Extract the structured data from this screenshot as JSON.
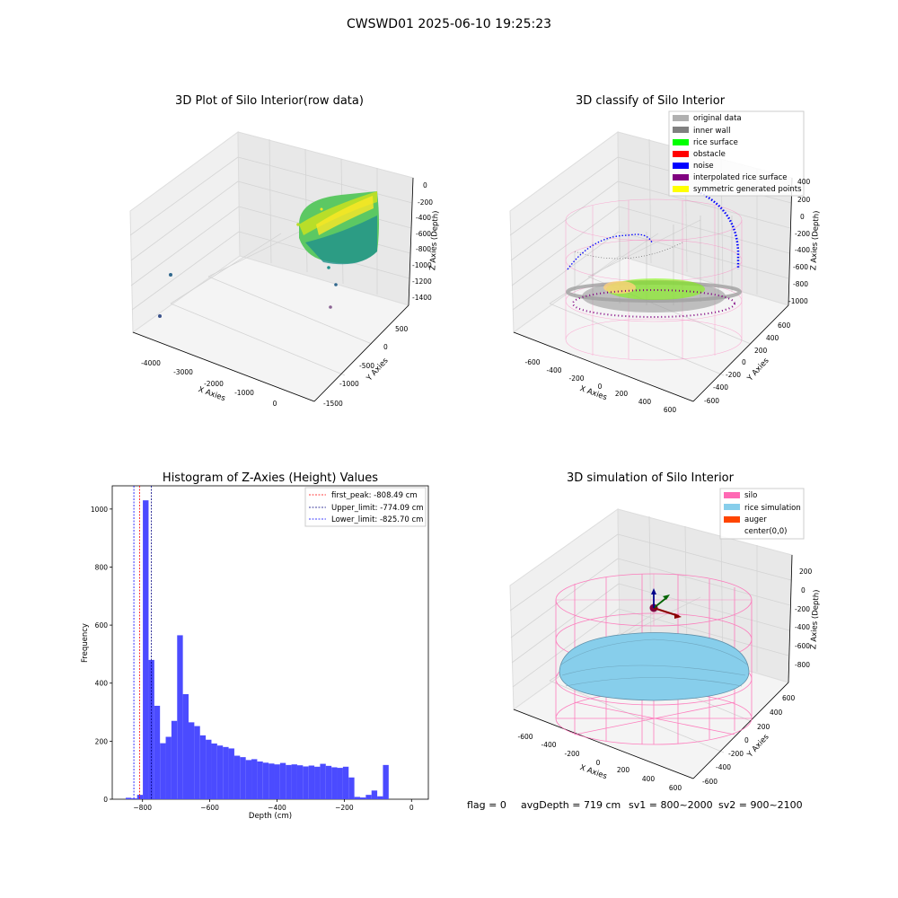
{
  "suptitle": "CWSWD01 2025-06-10 19:25:23",
  "footer": {
    "flag": "flag = 0",
    "avgDepth": "avgDepth = 719 cm",
    "sv1": "sv1 = 800~2000",
    "sv2": "sv2 = 900~2100"
  },
  "colors": {
    "hist_bar": "#4b4bff",
    "first_peak": "#ff0000",
    "upper_limit": "#000080",
    "lower_limit": "#0000ff",
    "silo": "#ff69b4",
    "rice_sim": "#87ceeb",
    "auger": "#ff4500",
    "original": "#b0b0b0",
    "inner_wall": "#808080",
    "rice_surface": "#00ff00",
    "obstacle": "#ff0000",
    "noise": "#0000ff",
    "interp": "#800080",
    "sym": "#ffff00"
  },
  "panel1": {
    "title": "3D Plot of Silo Interior(row data)",
    "xlabel": "X Axies",
    "ylabel": "Y Axies",
    "zlabel": "Z Axies (Depth)",
    "xticks": [
      "-4000",
      "-3000",
      "-2000",
      "-1000",
      "0"
    ],
    "yticks": [
      "500",
      "0",
      "-500",
      "-1000",
      "-1500"
    ],
    "zticks": [
      "0",
      "-200",
      "-400",
      "-600",
      "-800",
      "-1000",
      "-1200",
      "-1400"
    ]
  },
  "panel2": {
    "title": "3D classify of Silo Interior",
    "xlabel": "X Axies",
    "ylabel": "Y Axies",
    "zlabel": "Z Axies (Depth)",
    "xticks": [
      "-600",
      "-400",
      "-200",
      "0",
      "200",
      "400",
      "600"
    ],
    "yticks": [
      "600",
      "400",
      "200",
      "0",
      "-200",
      "-400",
      "-600"
    ],
    "zticks": [
      "400",
      "200",
      "0",
      "-200",
      "-400",
      "-600",
      "-800",
      "-1000"
    ],
    "legend": [
      "original data",
      "inner wall",
      "rice surface",
      "obstacle",
      "noise",
      "interpolated rice surface",
      "symmetric generated points"
    ]
  },
  "panel4": {
    "title": "3D simulation of Silo Interior",
    "xlabel": "X Axies",
    "ylabel": "Y Axies",
    "zlabel": "Z Axies (Depth)",
    "xticks": [
      "-600",
      "-400",
      "-200",
      "0",
      "200",
      "400",
      "600"
    ],
    "yticks": [
      "600",
      "400",
      "200",
      "0",
      "-200",
      "-400",
      "-600"
    ],
    "zticks": [
      "200",
      "0",
      "-200",
      "-400",
      "-600",
      "-800"
    ],
    "legend": [
      "silo",
      "rice simulation",
      "auger",
      "center(0,0)"
    ]
  },
  "chart_data": {
    "type": "bar",
    "title": "Histogram of Z-Axies (Height) Values",
    "xlabel": "Depth (cm)",
    "ylabel": "Frequency",
    "xlim": [
      -890,
      50
    ],
    "ylim": [
      0,
      1080
    ],
    "xticks": [
      -800,
      -600,
      -400,
      -200,
      0
    ],
    "yticks": [
      0,
      200,
      400,
      600,
      800,
      1000
    ],
    "bin_edges_start": -850,
    "bin_width": 17,
    "values": [
      5,
      3,
      15,
      1030,
      480,
      322,
      193,
      215,
      270,
      565,
      362,
      265,
      252,
      220,
      205,
      192,
      185,
      180,
      175,
      150,
      145,
      135,
      138,
      130,
      126,
      123,
      120,
      125,
      118,
      120,
      117,
      113,
      116,
      112,
      122,
      115,
      110,
      108,
      112,
      75,
      8,
      6,
      15,
      30,
      10,
      118
    ],
    "lines": [
      {
        "label": "first_peak: -808.49 cm",
        "x": -808.49
      },
      {
        "label": "Upper_limit: -774.09 cm",
        "x": -774.09
      },
      {
        "label": "Lower_limit: -825.70 cm",
        "x": -825.7
      }
    ]
  }
}
